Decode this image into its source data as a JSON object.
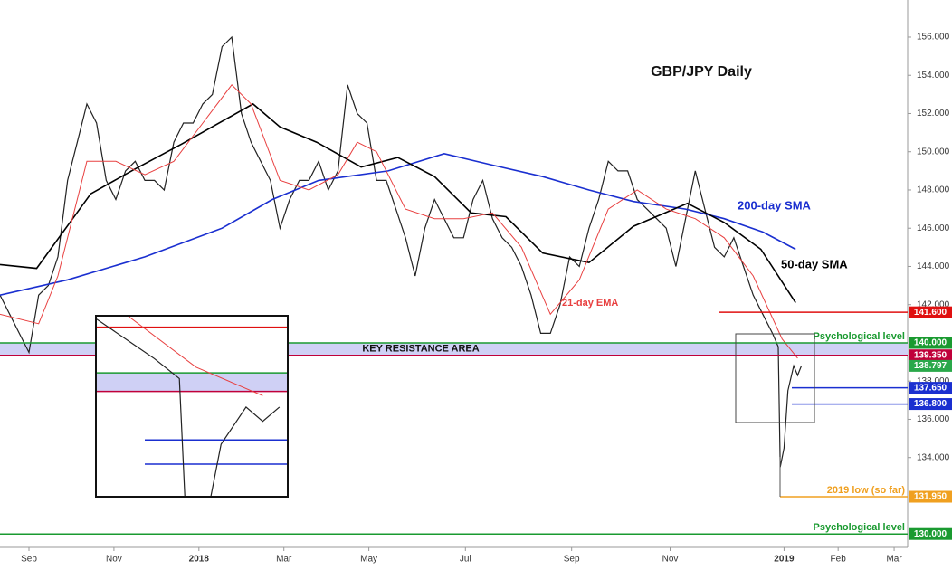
{
  "chart_data": {
    "type": "line",
    "title": "GBP/JPY Daily",
    "xlim": [
      -15,
      455
    ],
    "xticks": [
      {
        "value": 0,
        "label": "Sep"
      },
      {
        "value": 44,
        "label": "Nov"
      },
      {
        "value": 88,
        "label": "2018"
      },
      {
        "value": 132,
        "label": "Mar"
      },
      {
        "value": 176,
        "label": "May"
      },
      {
        "value": 226,
        "label": "Jul"
      },
      {
        "value": 281,
        "label": "Sep"
      },
      {
        "value": 332,
        "label": "Nov"
      },
      {
        "value": 391,
        "label": "2019"
      },
      {
        "value": 419,
        "label": "Feb"
      },
      {
        "value": 448,
        "label": "Mar"
      }
    ],
    "ylim": [
      129.3,
      157.94
    ],
    "yticks": [
      {
        "value": 134,
        "label": "134.000"
      },
      {
        "value": 136,
        "label": "136.000"
      },
      {
        "value": 138,
        "label": "138.000"
      },
      {
        "value": 142,
        "label": "142.000"
      },
      {
        "value": 144,
        "label": "144.000"
      },
      {
        "value": 146,
        "label": "146.000"
      },
      {
        "value": 148,
        "label": "148.000"
      },
      {
        "value": 150,
        "label": "150.000"
      },
      {
        "value": 152,
        "label": "152.000"
      },
      {
        "value": 154,
        "label": "154.000"
      },
      {
        "value": 156,
        "label": "156.000"
      }
    ],
    "series": [
      {
        "color": "#222222",
        "x": [
          -15,
          -10,
          -5,
          0,
          5,
          10,
          15,
          20,
          25,
          30,
          35,
          40,
          45,
          50,
          55,
          60,
          65,
          70,
          75,
          80,
          85,
          90,
          95,
          100,
          105,
          110,
          115,
          120,
          125,
          130,
          135,
          140,
          145,
          150,
          155,
          160,
          165,
          170,
          175,
          180,
          185,
          190,
          195,
          200,
          205,
          210,
          215,
          220,
          225,
          230,
          235,
          240,
          245,
          250,
          255,
          260,
          265,
          270,
          275,
          280,
          285,
          290,
          295,
          300,
          305,
          310,
          315,
          320,
          325,
          330,
          335,
          340,
          345,
          350,
          355,
          360,
          365,
          370,
          375,
          380,
          385,
          388,
          389,
          391,
          393,
          396,
          398,
          400
        ],
        "values": [
          142.5,
          141.5,
          140.5,
          139.5,
          142.5,
          143,
          144.5,
          148.5,
          150.5,
          152.5,
          151.5,
          148.5,
          147.5,
          149,
          149.5,
          148.5,
          148.5,
          148,
          150.5,
          151.5,
          151.5,
          152.5,
          153,
          155.5,
          156,
          152,
          150.5,
          149.5,
          148.5,
          146,
          147.5,
          148.5,
          148.5,
          149.5,
          148,
          149,
          153.5,
          152,
          151.5,
          148.5,
          148.5,
          147,
          145.5,
          143.5,
          146,
          147.5,
          146.5,
          145.5,
          145.5,
          147.5,
          148.5,
          146.5,
          145.5,
          145,
          144,
          142.5,
          140.5,
          140.5,
          142,
          144.5,
          144,
          146,
          147.5,
          149.5,
          149,
          149,
          147.5,
          147,
          146.5,
          146,
          144,
          146.5,
          149,
          147,
          145,
          144.5,
          145.5,
          144,
          142.5,
          141.5,
          140.5,
          139.8,
          133.5,
          134.5,
          137.5,
          138.8,
          138.3,
          138.8
        ]
      },
      {
        "name": "200-day SMA",
        "color": "#1a2fd0",
        "x": [
          -15,
          20,
          60,
          100,
          126,
          150,
          186,
          215,
          240,
          266,
          290,
          313,
          340,
          360,
          380,
          397
        ],
        "values": [
          142.5,
          143.3,
          144.5,
          146,
          147.5,
          148.5,
          149,
          149.9,
          149.3,
          148.7,
          148,
          147.4,
          147,
          146.5,
          145.8,
          144.9
        ]
      },
      {
        "name": "50-day SMA",
        "color": "#000000",
        "x": [
          -15,
          4,
          32,
          55,
          79,
          116,
          130,
          149,
          172,
          191,
          210,
          229,
          247,
          266,
          290,
          313,
          341,
          360,
          379,
          397
        ],
        "values": [
          144.1,
          143.9,
          147.8,
          149.1,
          150.4,
          152.5,
          151.3,
          150.5,
          149.2,
          149.7,
          148.7,
          146.8,
          146.6,
          144.7,
          144.2,
          146.1,
          147.3,
          146.3,
          144.9,
          142.1
        ]
      },
      {
        "name": "21-day EMA",
        "color": "#e84040",
        "x": [
          -15,
          5,
          15,
          30,
          45,
          60,
          75,
          90,
          105,
          115,
          130,
          145,
          160,
          170,
          180,
          195,
          210,
          225,
          240,
          255,
          270,
          285,
          300,
          315,
          330,
          345,
          360,
          375,
          390,
          398
        ],
        "values": [
          141.5,
          141,
          143.5,
          149.5,
          149.5,
          148.8,
          149.5,
          151.5,
          153.5,
          152.5,
          148.5,
          148,
          148.8,
          150.5,
          150,
          147,
          146.5,
          146.5,
          146.8,
          145,
          141.5,
          143.3,
          147,
          148,
          147,
          146.5,
          145.5,
          143.5,
          140.2,
          139.2
        ]
      }
    ],
    "levels": [
      {
        "value": 141.6,
        "label": "141.600",
        "color": "#e01010"
      },
      {
        "value": 140.0,
        "label": "140.000",
        "color": "#1a9a30",
        "note": "Psychological level"
      },
      {
        "value": 139.35,
        "label": "139.350",
        "color": "#c0003a"
      },
      {
        "value": 138.797,
        "label": "138.797",
        "color": "#2aa84a"
      },
      {
        "value": 137.65,
        "label": "137.650",
        "color": "#1a2fd0"
      },
      {
        "value": 136.8,
        "label": "136.800",
        "color": "#1a2fd0"
      },
      {
        "value": 131.95,
        "label": "131.950",
        "color": "#f0a020",
        "note": "2019 low (so far)"
      },
      {
        "value": 130.0,
        "label": "130.000",
        "color": "#1a9a30",
        "note": "Psychological level"
      }
    ],
    "zone_label": "KEY RESISTANCE AREA",
    "inset_ylim": [
      135.66,
      142.0
    ],
    "inset_xlim": [
      378,
      401
    ]
  }
}
